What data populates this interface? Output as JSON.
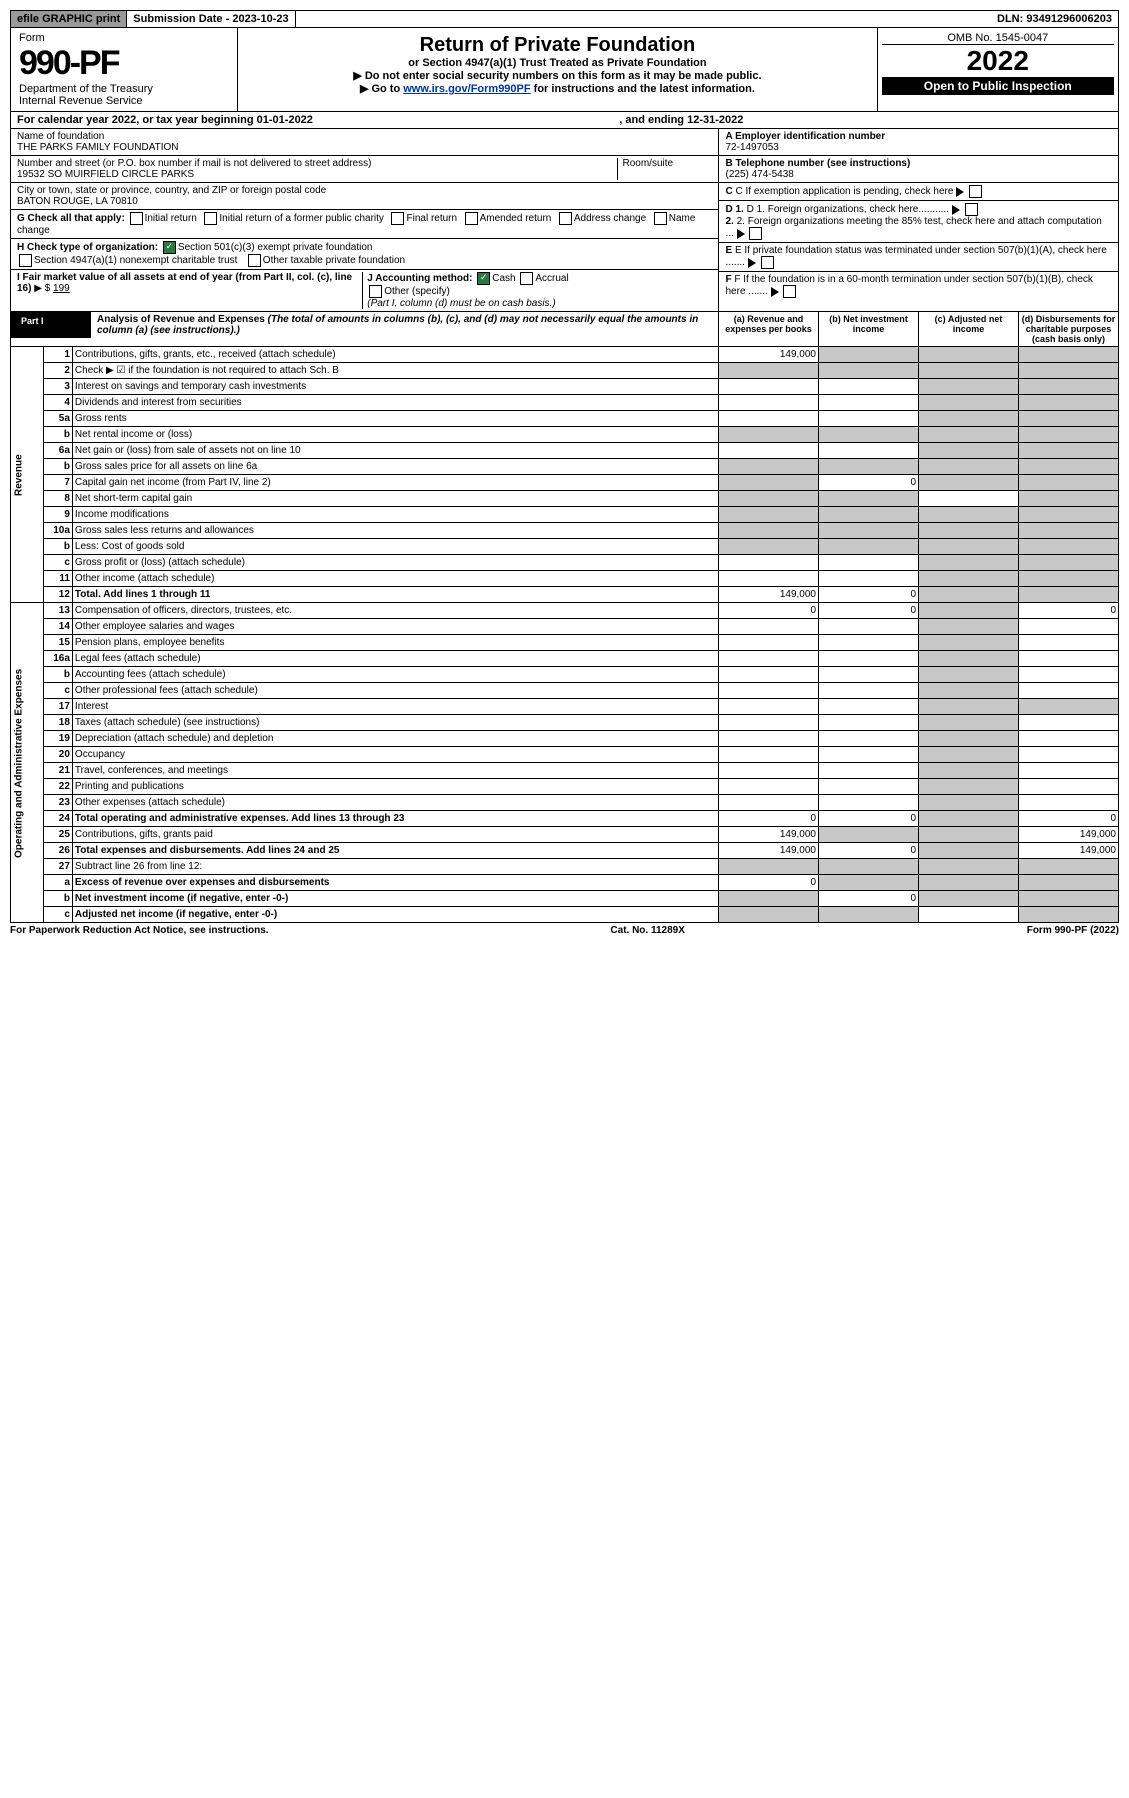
{
  "topbar": {
    "efile": "efile GRAPHIC print",
    "subdate_label": "Submission Date - ",
    "subdate": "2023-10-23",
    "dln_label": "DLN: ",
    "dln": "93491296006203"
  },
  "header": {
    "form_word": "Form",
    "form_no": "990-PF",
    "dept": "Department of the Treasury",
    "irs": "Internal Revenue Service",
    "title": "Return of Private Foundation",
    "subtitle": "or Section 4947(a)(1) Trust Treated as Private Foundation",
    "note1": "Do not enter social security numbers on this form as it may be made public.",
    "note2": "Go to ",
    "link": "www.irs.gov/Form990PF",
    "note3": " for instructions and the latest information.",
    "omb": "OMB No. 1545-0047",
    "year": "2022",
    "open": "Open to Public Inspection"
  },
  "cal": "For calendar year 2022, or tax year beginning 01-01-2022",
  "cal2": ", and ending 12-31-2022",
  "info": {
    "name_lbl": "Name of foundation",
    "name": "THE PARKS FAMILY FOUNDATION",
    "addr_lbl": "Number and street (or P.O. box number if mail is not delivered to street address)",
    "addr": "19532 SO MUIRFIELD CIRCLE PARKS",
    "room": "Room/suite",
    "city_lbl": "City or town, state or province, country, and ZIP or foreign postal code",
    "city": "BATON ROUGE, LA  70810",
    "ein_lbl": "A Employer identification number",
    "ein": "72-1497053",
    "tel_lbl": "B Telephone number (see instructions)",
    "tel": "(225) 474-5438",
    "c": "C If exemption application is pending, check here",
    "d1": "D 1. Foreign organizations, check here...........",
    "d2": "2. Foreign organizations meeting the 85% test, check here and attach computation ...",
    "e": "E If private foundation status was terminated under section 507(b)(1)(A), check here .......",
    "f": "F If the foundation is in a 60-month termination under section 507(b)(1)(B), check here .......",
    "g": "G Check all that apply:",
    "g_items": [
      "Initial return",
      "Initial return of a former public charity",
      "Final return",
      "Amended return",
      "Address change",
      "Name change"
    ],
    "h": "H Check type of organization:",
    "h1": "Section 501(c)(3) exempt private foundation",
    "h2": "Section 4947(a)(1) nonexempt charitable trust",
    "h3": "Other taxable private foundation",
    "i": "I Fair market value of all assets at end of year (from Part II, col. (c), line 16)",
    "i_arrow": "▶ $",
    "i_val": "199",
    "j": "J Accounting method:",
    "j_cash": "Cash",
    "j_accrual": "Accrual",
    "j_other": "Other (specify)",
    "j_note": "(Part I, column (d) must be on cash basis.)"
  },
  "part1": {
    "label": "Part I",
    "title": "Analysis of Revenue and Expenses ",
    "title_note": "(The total of amounts in columns (b), (c), and (d) may not necessarily equal the amounts in column (a) (see instructions).)",
    "col_a": "(a) Revenue and expenses per books",
    "col_b": "(b) Net investment income",
    "col_c": "(c) Adjusted net income",
    "col_d": "(d) Disbursements for charitable purposes (cash basis only)"
  },
  "sections": {
    "rev": "Revenue",
    "exp": "Operating and Administrative Expenses"
  },
  "rows": [
    {
      "n": "1",
      "d": "Contributions, gifts, grants, etc., received (attach schedule)",
      "a": "149,000"
    },
    {
      "n": "2",
      "d": "Check ▶ ☑ if the foundation is not required to attach Sch. B"
    },
    {
      "n": "3",
      "d": "Interest on savings and temporary cash investments"
    },
    {
      "n": "4",
      "d": "Dividends and interest from securities"
    },
    {
      "n": "5a",
      "d": "Gross rents"
    },
    {
      "n": "b",
      "d": "Net rental income or (loss)"
    },
    {
      "n": "6a",
      "d": "Net gain or (loss) from sale of assets not on line 10"
    },
    {
      "n": "b",
      "d": "Gross sales price for all assets on line 6a"
    },
    {
      "n": "7",
      "d": "Capital gain net income (from Part IV, line 2)",
      "b": "0"
    },
    {
      "n": "8",
      "d": "Net short-term capital gain"
    },
    {
      "n": "9",
      "d": "Income modifications"
    },
    {
      "n": "10a",
      "d": "Gross sales less returns and allowances"
    },
    {
      "n": "b",
      "d": "Less: Cost of goods sold"
    },
    {
      "n": "c",
      "d": "Gross profit or (loss) (attach schedule)"
    },
    {
      "n": "11",
      "d": "Other income (attach schedule)"
    },
    {
      "n": "12",
      "d": "Total. Add lines 1 through 11",
      "bold": true,
      "a": "149,000",
      "b": "0"
    }
  ],
  "exp_rows": [
    {
      "n": "13",
      "d": "Compensation of officers, directors, trustees, etc.",
      "a": "0",
      "b": "0",
      "dcol": "0"
    },
    {
      "n": "14",
      "d": "Other employee salaries and wages"
    },
    {
      "n": "15",
      "d": "Pension plans, employee benefits"
    },
    {
      "n": "16a",
      "d": "Legal fees (attach schedule)"
    },
    {
      "n": "b",
      "d": "Accounting fees (attach schedule)"
    },
    {
      "n": "c",
      "d": "Other professional fees (attach schedule)"
    },
    {
      "n": "17",
      "d": "Interest"
    },
    {
      "n": "18",
      "d": "Taxes (attach schedule) (see instructions)"
    },
    {
      "n": "19",
      "d": "Depreciation (attach schedule) and depletion"
    },
    {
      "n": "20",
      "d": "Occupancy"
    },
    {
      "n": "21",
      "d": "Travel, conferences, and meetings"
    },
    {
      "n": "22",
      "d": "Printing and publications"
    },
    {
      "n": "23",
      "d": "Other expenses (attach schedule)"
    },
    {
      "n": "24",
      "d": "Total operating and administrative expenses. Add lines 13 through 23",
      "bold": true,
      "a": "0",
      "b": "0",
      "dcol": "0"
    },
    {
      "n": "25",
      "d": "Contributions, gifts, grants paid",
      "a": "149,000",
      "dcol": "149,000"
    },
    {
      "n": "26",
      "d": "Total expenses and disbursements. Add lines 24 and 25",
      "bold": true,
      "a": "149,000",
      "b": "0",
      "dcol": "149,000"
    },
    {
      "n": "27",
      "d": "Subtract line 26 from line 12:"
    },
    {
      "n": "a",
      "d": "Excess of revenue over expenses and disbursements",
      "bold": true,
      "a": "0"
    },
    {
      "n": "b",
      "d": "Net investment income (if negative, enter -0-)",
      "bold": true,
      "b": "0"
    },
    {
      "n": "c",
      "d": "Adjusted net income (if negative, enter -0-)",
      "bold": true
    }
  ],
  "footer": {
    "left": "For Paperwork Reduction Act Notice, see instructions.",
    "mid": "Cat. No. 11289X",
    "right": "Form 990-PF (2022)"
  }
}
